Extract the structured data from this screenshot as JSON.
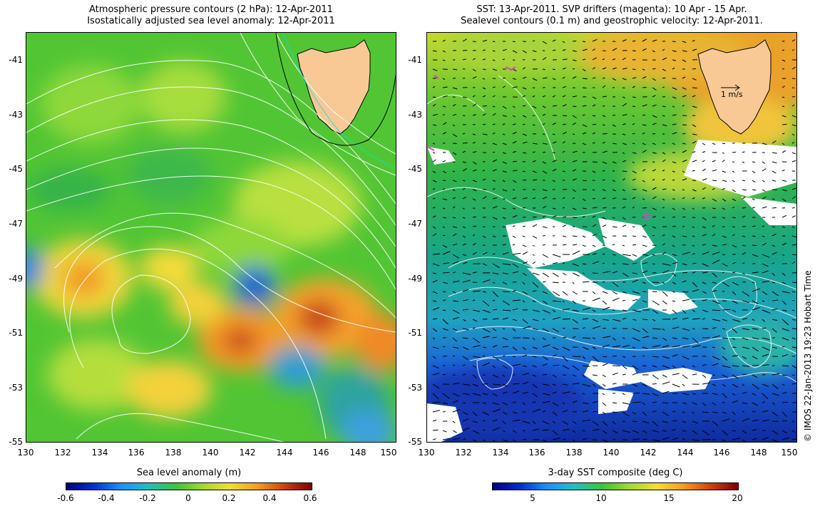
{
  "left_panel": {
    "title_line1": "Atmospheric pressure contours (2 hPa): 12-Apr-2011",
    "title_line2": "Isostatically adjusted sea level anomaly: 12-Apr-2011",
    "colorbar_label": "Sea level anomaly (m)",
    "colorbar_ticks": [
      "-0.6",
      "-0.4",
      "-0.2",
      "0",
      "0.2",
      "0.4",
      "0.6"
    ],
    "colorbar_values": [
      -0.6,
      -0.4,
      -0.2,
      0,
      0.2,
      0.4,
      0.6
    ],
    "colorbar_range": [
      -0.6,
      0.6
    ]
  },
  "right_panel": {
    "title_line1": "SST: 13-Apr-2011. SVP drifters (magenta): 10 Apr - 15 Apr.",
    "title_line2": "Sealevel contours (0.1 m) and geostrophic velocity: 12-Apr-2011.",
    "colorbar_label": "3-day SST composite (deg C)",
    "colorbar_ticks": [
      "5",
      "10",
      "15",
      "20"
    ],
    "colorbar_values": [
      5,
      10,
      15,
      20
    ],
    "colorbar_range": [
      2,
      20
    ],
    "velocity_scale_label": "1 m/s"
  },
  "axes": {
    "y_ticks": [
      "-41",
      "-43",
      "-45",
      "-47",
      "-49",
      "-51",
      "-53",
      "-55"
    ],
    "x_ticks": [
      "130",
      "132",
      "134",
      "136",
      "138",
      "140",
      "142",
      "144",
      "146",
      "148",
      "150"
    ],
    "lat_range": [
      -55,
      -40
    ],
    "lon_range": [
      130,
      150
    ]
  },
  "credit": "© IMOS 22-Jan-2013 19:23 Hobart Time",
  "colors": {
    "land": "#f9c995",
    "pressure_contour": "#ffffff",
    "drifter": "#e040c0"
  }
}
